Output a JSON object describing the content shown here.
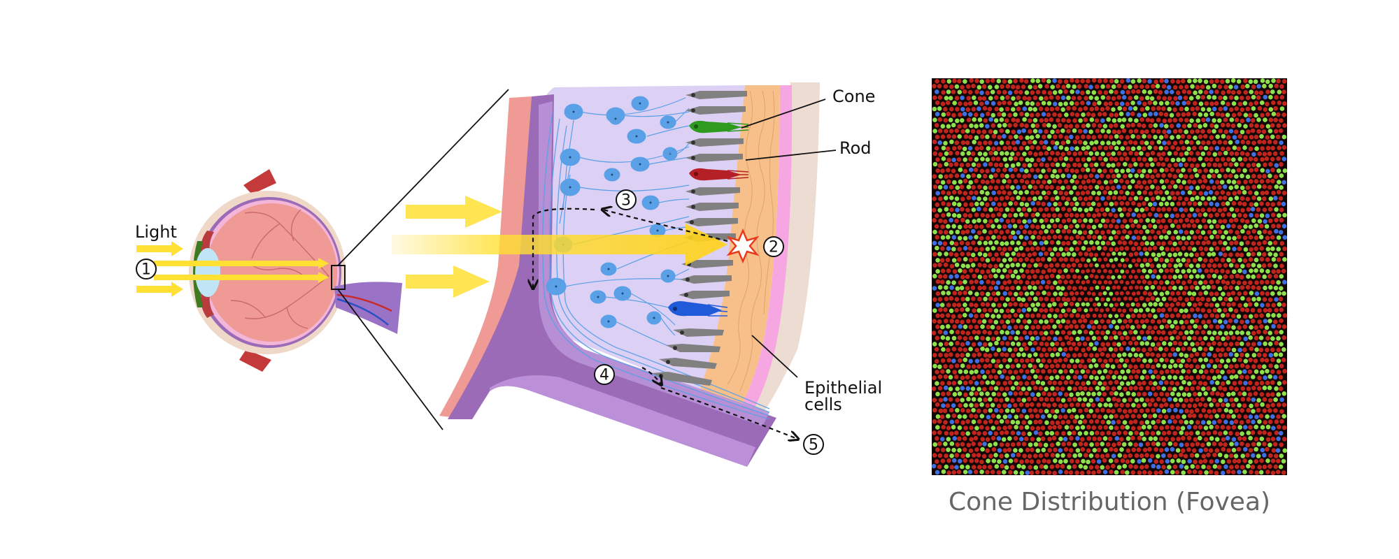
{
  "labels": {
    "light": "Light",
    "cone": "Cone",
    "rod": "Rod",
    "epithelial_line1": "Epithelial",
    "epithelial_line2": "cells"
  },
  "step_markers": [
    "1",
    "2",
    "3",
    "4",
    "5"
  ],
  "caption": "Cone Distribution (Fovea)",
  "colors": {
    "light": "#ffe033",
    "eyeball": "#ef9a94",
    "choroid": "#9b6bb8",
    "retina_bg": "#ddd0f5",
    "neuron": "#5aa0e6",
    "rod": "#808080",
    "cone_green": "#2e9a1f",
    "cone_red": "#b51f26",
    "cone_blue": "#1f5bd8",
    "epithelial": "#f7c08a",
    "mosaic_red": "#c0241e",
    "mosaic_green": "#8ee04c",
    "mosaic_blue": "#3f6fe0",
    "caption": "#666666"
  },
  "icons": [
    "eye-cross-section",
    "retina-layer-diagram",
    "photoreceptor-mosaic",
    "flash-star-icon"
  ]
}
